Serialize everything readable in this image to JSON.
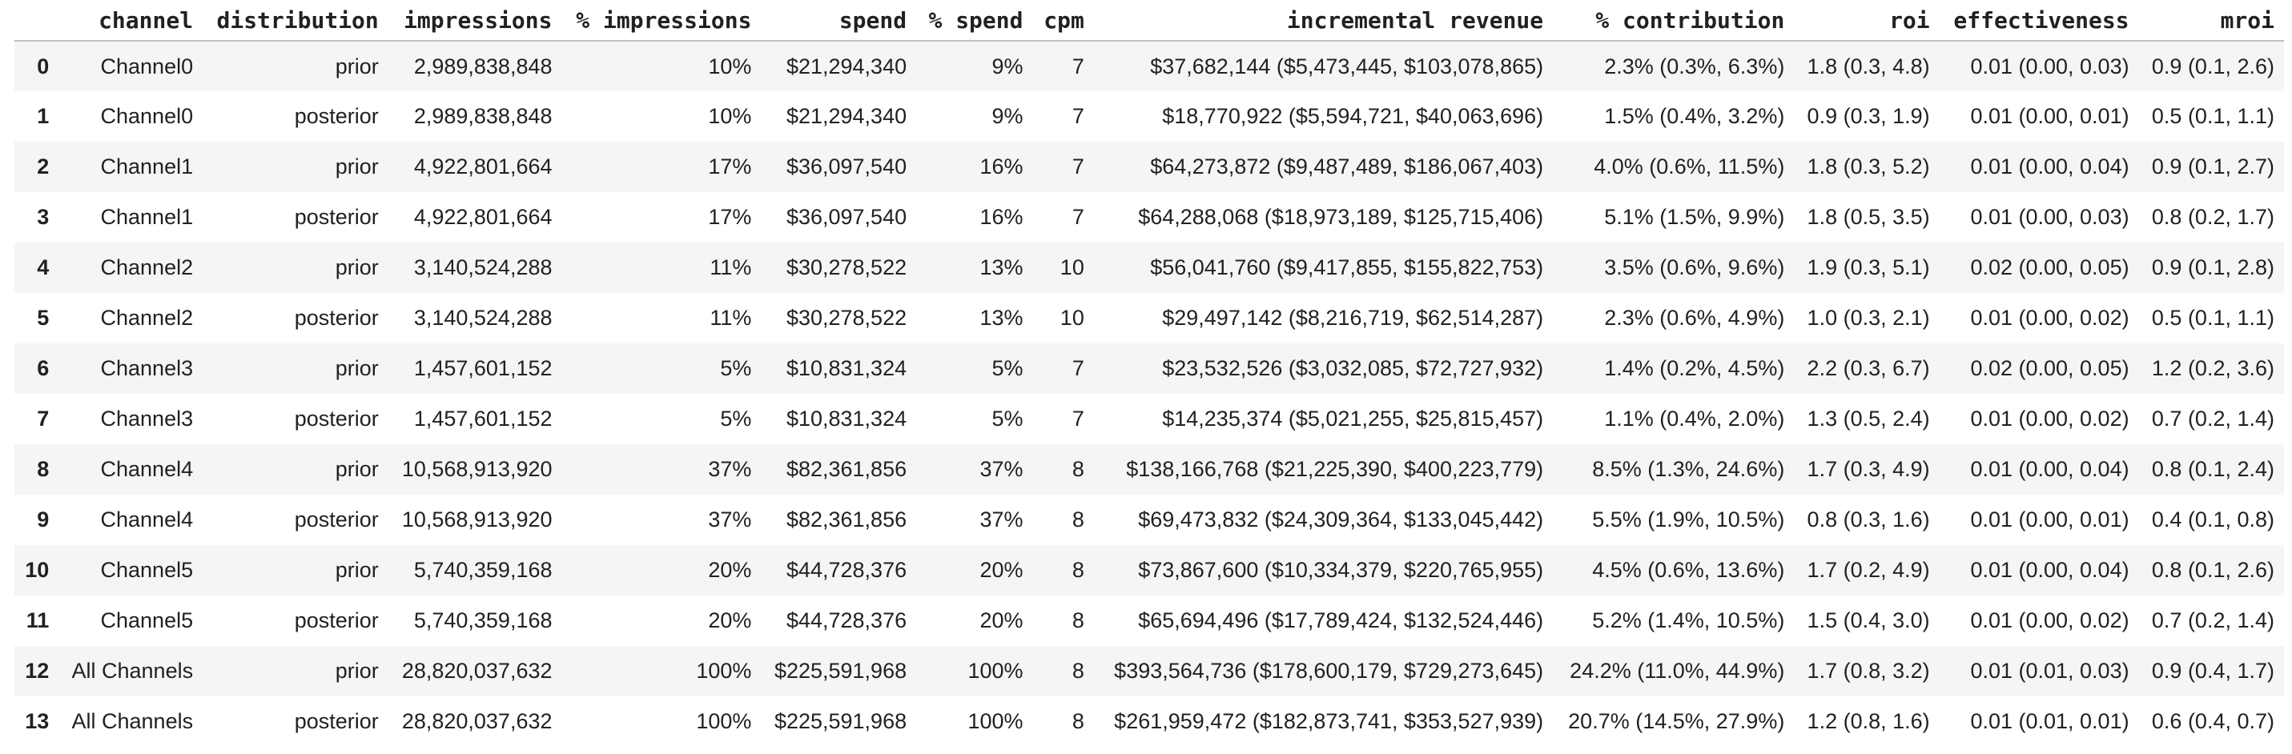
{
  "colors": {
    "text": "#212121",
    "row_stripe": "#f5f5f5",
    "header_border": "#bfbfbf",
    "background": "#ffffff"
  },
  "table": {
    "columns": [
      "",
      "channel",
      "distribution",
      "impressions",
      "% impressions",
      "spend",
      "% spend",
      "cpm",
      "incremental revenue",
      "% contribution",
      "roi",
      "effectiveness",
      "mroi"
    ],
    "rows": [
      [
        "0",
        "Channel0",
        "prior",
        "2,989,838,848",
        "10%",
        "$21,294,340",
        "9%",
        "7",
        "$37,682,144 ($5,473,445, $103,078,865)",
        "2.3% (0.3%, 6.3%)",
        "1.8 (0.3, 4.8)",
        "0.01 (0.00, 0.03)",
        "0.9 (0.1, 2.6)"
      ],
      [
        "1",
        "Channel0",
        "posterior",
        "2,989,838,848",
        "10%",
        "$21,294,340",
        "9%",
        "7",
        "$18,770,922 ($5,594,721, $40,063,696)",
        "1.5% (0.4%, 3.2%)",
        "0.9 (0.3, 1.9)",
        "0.01 (0.00, 0.01)",
        "0.5 (0.1, 1.1)"
      ],
      [
        "2",
        "Channel1",
        "prior",
        "4,922,801,664",
        "17%",
        "$36,097,540",
        "16%",
        "7",
        "$64,273,872 ($9,487,489, $186,067,403)",
        "4.0% (0.6%, 11.5%)",
        "1.8 (0.3, 5.2)",
        "0.01 (0.00, 0.04)",
        "0.9 (0.1, 2.7)"
      ],
      [
        "3",
        "Channel1",
        "posterior",
        "4,922,801,664",
        "17%",
        "$36,097,540",
        "16%",
        "7",
        "$64,288,068 ($18,973,189, $125,715,406)",
        "5.1% (1.5%, 9.9%)",
        "1.8 (0.5, 3.5)",
        "0.01 (0.00, 0.03)",
        "0.8 (0.2, 1.7)"
      ],
      [
        "4",
        "Channel2",
        "prior",
        "3,140,524,288",
        "11%",
        "$30,278,522",
        "13%",
        "10",
        "$56,041,760 ($9,417,855, $155,822,753)",
        "3.5% (0.6%, 9.6%)",
        "1.9 (0.3, 5.1)",
        "0.02 (0.00, 0.05)",
        "0.9 (0.1, 2.8)"
      ],
      [
        "5",
        "Channel2",
        "posterior",
        "3,140,524,288",
        "11%",
        "$30,278,522",
        "13%",
        "10",
        "$29,497,142 ($8,216,719, $62,514,287)",
        "2.3% (0.6%, 4.9%)",
        "1.0 (0.3, 2.1)",
        "0.01 (0.00, 0.02)",
        "0.5 (0.1, 1.1)"
      ],
      [
        "6",
        "Channel3",
        "prior",
        "1,457,601,152",
        "5%",
        "$10,831,324",
        "5%",
        "7",
        "$23,532,526 ($3,032,085, $72,727,932)",
        "1.4% (0.2%, 4.5%)",
        "2.2 (0.3, 6.7)",
        "0.02 (0.00, 0.05)",
        "1.2 (0.2, 3.6)"
      ],
      [
        "7",
        "Channel3",
        "posterior",
        "1,457,601,152",
        "5%",
        "$10,831,324",
        "5%",
        "7",
        "$14,235,374 ($5,021,255, $25,815,457)",
        "1.1% (0.4%, 2.0%)",
        "1.3 (0.5, 2.4)",
        "0.01 (0.00, 0.02)",
        "0.7 (0.2, 1.4)"
      ],
      [
        "8",
        "Channel4",
        "prior",
        "10,568,913,920",
        "37%",
        "$82,361,856",
        "37%",
        "8",
        "$138,166,768 ($21,225,390, $400,223,779)",
        "8.5% (1.3%, 24.6%)",
        "1.7 (0.3, 4.9)",
        "0.01 (0.00, 0.04)",
        "0.8 (0.1, 2.4)"
      ],
      [
        "9",
        "Channel4",
        "posterior",
        "10,568,913,920",
        "37%",
        "$82,361,856",
        "37%",
        "8",
        "$69,473,832 ($24,309,364, $133,045,442)",
        "5.5% (1.9%, 10.5%)",
        "0.8 (0.3, 1.6)",
        "0.01 (0.00, 0.01)",
        "0.4 (0.1, 0.8)"
      ],
      [
        "10",
        "Channel5",
        "prior",
        "5,740,359,168",
        "20%",
        "$44,728,376",
        "20%",
        "8",
        "$73,867,600 ($10,334,379, $220,765,955)",
        "4.5% (0.6%, 13.6%)",
        "1.7 (0.2, 4.9)",
        "0.01 (0.00, 0.04)",
        "0.8 (0.1, 2.6)"
      ],
      [
        "11",
        "Channel5",
        "posterior",
        "5,740,359,168",
        "20%",
        "$44,728,376",
        "20%",
        "8",
        "$65,694,496 ($17,789,424, $132,524,446)",
        "5.2% (1.4%, 10.5%)",
        "1.5 (0.4, 3.0)",
        "0.01 (0.00, 0.02)",
        "0.7 (0.2, 1.4)"
      ],
      [
        "12",
        "All Channels",
        "prior",
        "28,820,037,632",
        "100%",
        "$225,591,968",
        "100%",
        "8",
        "$393,564,736 ($178,600,179, $729,273,645)",
        "24.2% (11.0%, 44.9%)",
        "1.7 (0.8, 3.2)",
        "0.01 (0.01, 0.03)",
        "0.9 (0.4, 1.7)"
      ],
      [
        "13",
        "All Channels",
        "posterior",
        "28,820,037,632",
        "100%",
        "$225,591,968",
        "100%",
        "8",
        "$261,959,472 ($182,873,741, $353,527,939)",
        "20.7% (14.5%, 27.9%)",
        "1.2 (0.8, 1.6)",
        "0.01 (0.01, 0.01)",
        "0.6 (0.4, 0.7)"
      ]
    ]
  }
}
